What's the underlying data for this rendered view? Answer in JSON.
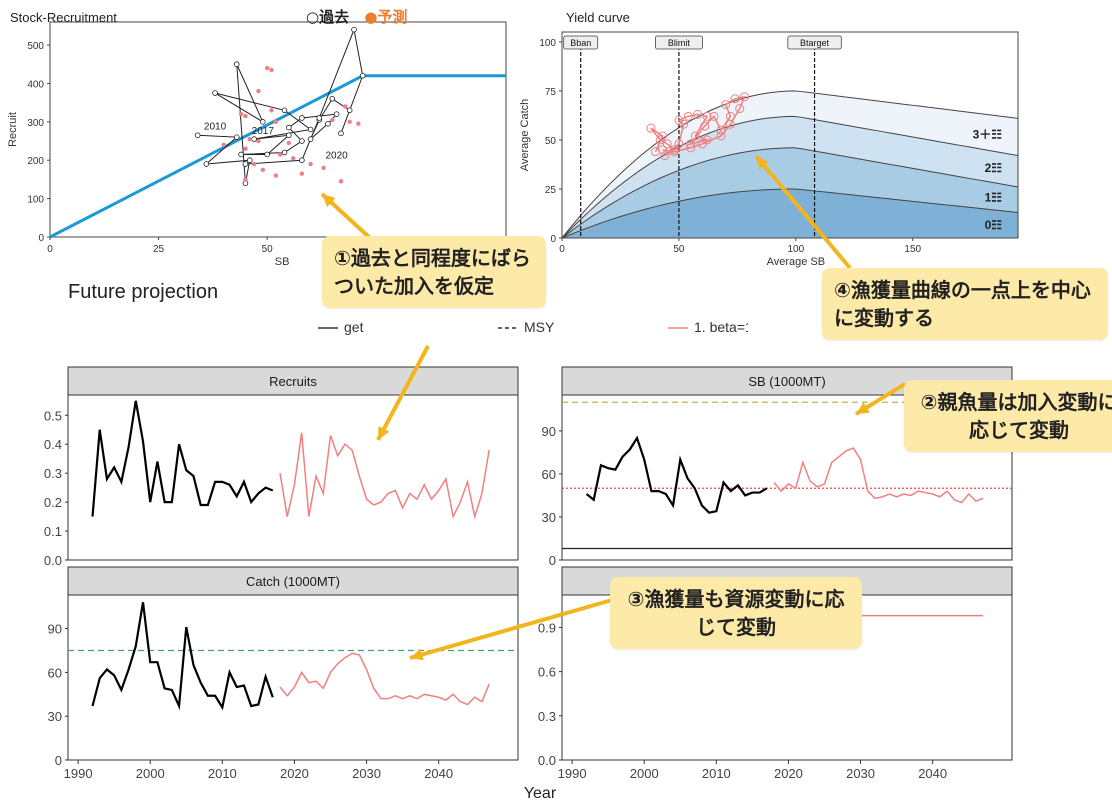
{
  "callouts": {
    "c1": "①過去と同程度にばらついた加入を仮定",
    "c2": "②親魚量は加入変動に応じて変動",
    "c3": "③漁獲量も資源変動に応じて変動",
    "c4": "④漁獲量曲線の一点上を中心に変動する"
  },
  "top_legend": {
    "past": "○過去",
    "predict": "●予測"
  },
  "section_title": "Future projection",
  "legend": [
    {
      "label": "get",
      "style": "solid",
      "color": "#333333"
    },
    {
      "label": "MSY",
      "style": "dashed",
      "color": "#333333"
    },
    {
      "label": "1. beta=1.3",
      "style": "solid",
      "color": "#f08080"
    }
  ],
  "colors": {
    "past": "#000000",
    "predict": "#f08080",
    "sr_line": "#1a9ad6",
    "ref_green": "#4a9f6a",
    "ref_olive": "#b5a642",
    "ref_red": "#e84a4a"
  },
  "chart_data": [
    {
      "id": "stock_recruitment",
      "type": "scatter",
      "title": "Stock-Recruitment",
      "xlabel": "SB",
      "ylabel": "Recruit",
      "xlim": [
        0,
        105
      ],
      "ylim": [
        0,
        560
      ],
      "xticks": [
        0,
        25,
        50
      ],
      "yticks": [
        0,
        100,
        200,
        300,
        400,
        500
      ],
      "sr_line": [
        [
          0,
          0
        ],
        [
          72,
          420
        ],
        [
          105,
          420
        ]
      ],
      "past_path": [
        [
          34,
          265
        ],
        [
          43,
          260
        ],
        [
          36,
          190
        ],
        [
          46,
          200
        ],
        [
          45,
          140
        ],
        [
          43,
          450
        ],
        [
          49,
          300
        ],
        [
          38,
          375
        ],
        [
          54,
          330
        ],
        [
          60,
          280
        ],
        [
          47,
          255
        ],
        [
          55,
          265
        ],
        [
          50,
          215
        ],
        [
          44,
          215
        ],
        [
          54,
          220
        ],
        [
          58,
          250
        ],
        [
          55,
          285
        ],
        [
          58,
          310
        ],
        [
          66,
          320
        ],
        [
          64,
          295
        ],
        [
          60,
          255
        ],
        [
          62,
          305
        ],
        [
          65,
          360
        ],
        [
          69,
          330
        ],
        [
          67,
          270
        ],
        [
          72,
          420
        ],
        [
          70,
          540
        ],
        [
          62,
          310
        ],
        [
          58,
          200
        ],
        [
          45,
          190
        ]
      ],
      "predicted_points": [
        [
          50,
          440
        ],
        [
          51,
          435
        ],
        [
          48,
          380
        ],
        [
          51,
          330
        ],
        [
          45,
          315
        ],
        [
          52,
          300
        ],
        [
          40,
          240
        ],
        [
          45,
          230
        ],
        [
          48,
          250
        ],
        [
          55,
          245
        ],
        [
          53,
          215
        ],
        [
          56,
          205
        ],
        [
          49,
          175
        ],
        [
          52,
          160
        ],
        [
          45,
          150
        ],
        [
          47,
          190
        ],
        [
          60,
          190
        ],
        [
          63,
          180
        ],
        [
          58,
          165
        ],
        [
          67,
          145
        ],
        [
          65,
          305
        ],
        [
          71,
          295
        ],
        [
          68,
          340
        ],
        [
          69,
          300
        ],
        [
          46,
          255
        ],
        [
          44,
          320
        ]
      ],
      "annotations": [
        {
          "text": "2010",
          "x": 38,
          "y": 280
        },
        {
          "text": "2017",
          "x": 49,
          "y": 268
        },
        {
          "text": "2020",
          "x": 66,
          "y": 205
        }
      ]
    },
    {
      "id": "yield_curve",
      "type": "area",
      "title": "Yield curve",
      "xlabel": "Average SB",
      "ylabel": "Average Catch",
      "xlim": [
        0,
        195
      ],
      "ylim": [
        0,
        105
      ],
      "xticks": [
        0,
        50,
        100,
        150
      ],
      "yticks": [
        0,
        25,
        50,
        75,
        100
      ],
      "refs": [
        {
          "label": "Bban",
          "x": 8
        },
        {
          "label": "Blimit",
          "x": 50
        },
        {
          "label": "Btarget",
          "x": 108
        }
      ],
      "bands": [
        {
          "label": "0",
          "peak": 25,
          "end": 13
        },
        {
          "label": "1",
          "peak": 46,
          "end": 26
        },
        {
          "label": "2",
          "peak": 62,
          "end": 42
        },
        {
          "label": "3＋",
          "peak": 75,
          "end": 61
        }
      ],
      "band_label_suffix": "☷",
      "trajectory": [
        [
          40,
          44
        ],
        [
          43,
          52
        ],
        [
          38,
          56
        ],
        [
          42,
          50
        ],
        [
          45,
          48
        ],
        [
          48,
          45
        ],
        [
          44,
          42
        ],
        [
          50,
          48
        ],
        [
          52,
          58
        ],
        [
          50,
          60
        ],
        [
          54,
          62
        ],
        [
          58,
          63
        ],
        [
          62,
          62
        ],
        [
          57,
          52
        ],
        [
          62,
          50
        ],
        [
          55,
          48
        ],
        [
          61,
          57
        ],
        [
          65,
          62
        ],
        [
          68,
          55
        ],
        [
          72,
          62
        ],
        [
          70,
          68
        ],
        [
          74,
          71
        ],
        [
          78,
          72
        ],
        [
          76,
          66
        ],
        [
          72,
          58
        ],
        [
          68,
          52
        ],
        [
          60,
          48
        ],
        [
          55,
          46
        ],
        [
          48,
          44
        ],
        [
          43,
          45
        ]
      ]
    },
    {
      "id": "recruits",
      "type": "line",
      "title": "Recruits",
      "ylim": [
        0,
        0.57
      ],
      "yticks": [
        0.0,
        0.1,
        0.2,
        0.3,
        0.4,
        0.5
      ],
      "x_past_start": 1992,
      "past": [
        0.15,
        0.45,
        0.28,
        0.32,
        0.27,
        0.39,
        0.55,
        0.41,
        0.2,
        0.34,
        0.2,
        0.2,
        0.4,
        0.31,
        0.29,
        0.19,
        0.19,
        0.27,
        0.27,
        0.26,
        0.22,
        0.27,
        0.2,
        0.23,
        0.25,
        0.24
      ],
      "x_pred_start": 2018,
      "pred": [
        0.3,
        0.15,
        0.26,
        0.44,
        0.15,
        0.29,
        0.23,
        0.43,
        0.36,
        0.4,
        0.38,
        0.29,
        0.21,
        0.19,
        0.2,
        0.23,
        0.24,
        0.18,
        0.23,
        0.21,
        0.26,
        0.21,
        0.24,
        0.28,
        0.15,
        0.2,
        0.27,
        0.15,
        0.23,
        0.38
      ]
    },
    {
      "id": "sb",
      "type": "line",
      "title": "SB (1000MT)",
      "ylim": [
        0,
        115
      ],
      "yticks": [
        0,
        30,
        60,
        90
      ],
      "x_past_start": 1992,
      "past": [
        46,
        42,
        66,
        64,
        63,
        72,
        77,
        85,
        70,
        48,
        48,
        46,
        38,
        70,
        57,
        50,
        38,
        33,
        34,
        54,
        48,
        52,
        45,
        47,
        47,
        50
      ],
      "x_pred_start": 2018,
      "pred": [
        54,
        48,
        53,
        50,
        68,
        55,
        51,
        53,
        68,
        72,
        76,
        78,
        70,
        48,
        43,
        44,
        46,
        44,
        46,
        45,
        48,
        47,
        46,
        44,
        48,
        42,
        40,
        46,
        41,
        43
      ],
      "hlines": [
        {
          "y": 110,
          "color": "olive",
          "style": "dashed"
        },
        {
          "y": 50,
          "color": "red",
          "style": "dotted"
        },
        {
          "y": 8,
          "color": "black",
          "style": "solid"
        }
      ]
    },
    {
      "id": "catch",
      "type": "line",
      "title": "Catch (1000MT)",
      "ylim": [
        0,
        113
      ],
      "yticks": [
        0,
        30,
        60,
        90
      ],
      "x_past_start": 1992,
      "past": [
        37,
        56,
        62,
        58,
        48,
        62,
        78,
        108,
        67,
        67,
        49,
        48,
        37,
        91,
        65,
        53,
        44,
        44,
        36,
        60,
        50,
        51,
        37,
        38,
        57,
        43
      ],
      "x_pred_start": 2018,
      "pred": [
        50,
        44,
        50,
        60,
        53,
        54,
        49,
        60,
        66,
        70,
        73,
        72,
        62,
        49,
        42,
        42,
        44,
        42,
        44,
        42,
        45,
        44,
        43,
        41,
        45,
        40,
        38,
        43,
        40,
        52
      ],
      "hlines": [
        {
          "y": 75,
          "color": "green",
          "style": "dashed"
        }
      ]
    },
    {
      "id": "fourth_panel",
      "type": "line",
      "title": "ent",
      "ylim": [
        0,
        1.12
      ],
      "yticks": [
        0.0,
        0.3,
        0.6,
        0.9
      ],
      "x_pred_start": 2018,
      "pred": [
        0.98,
        0.98,
        0.98,
        0.98,
        0.98,
        0.98,
        0.98,
        0.98,
        0.98,
        0.98,
        0.98,
        0.98,
        0.98,
        0.98,
        0.98,
        0.98,
        0.98,
        0.98,
        0.98,
        0.98,
        0.98,
        0.98,
        0.98,
        0.98,
        0.98,
        0.98,
        0.98,
        0.98,
        0.98,
        0.98
      ]
    }
  ],
  "x_axis": {
    "label": "Year",
    "ticks": [
      1990,
      2000,
      2010,
      2020,
      2030,
      2040
    ]
  }
}
